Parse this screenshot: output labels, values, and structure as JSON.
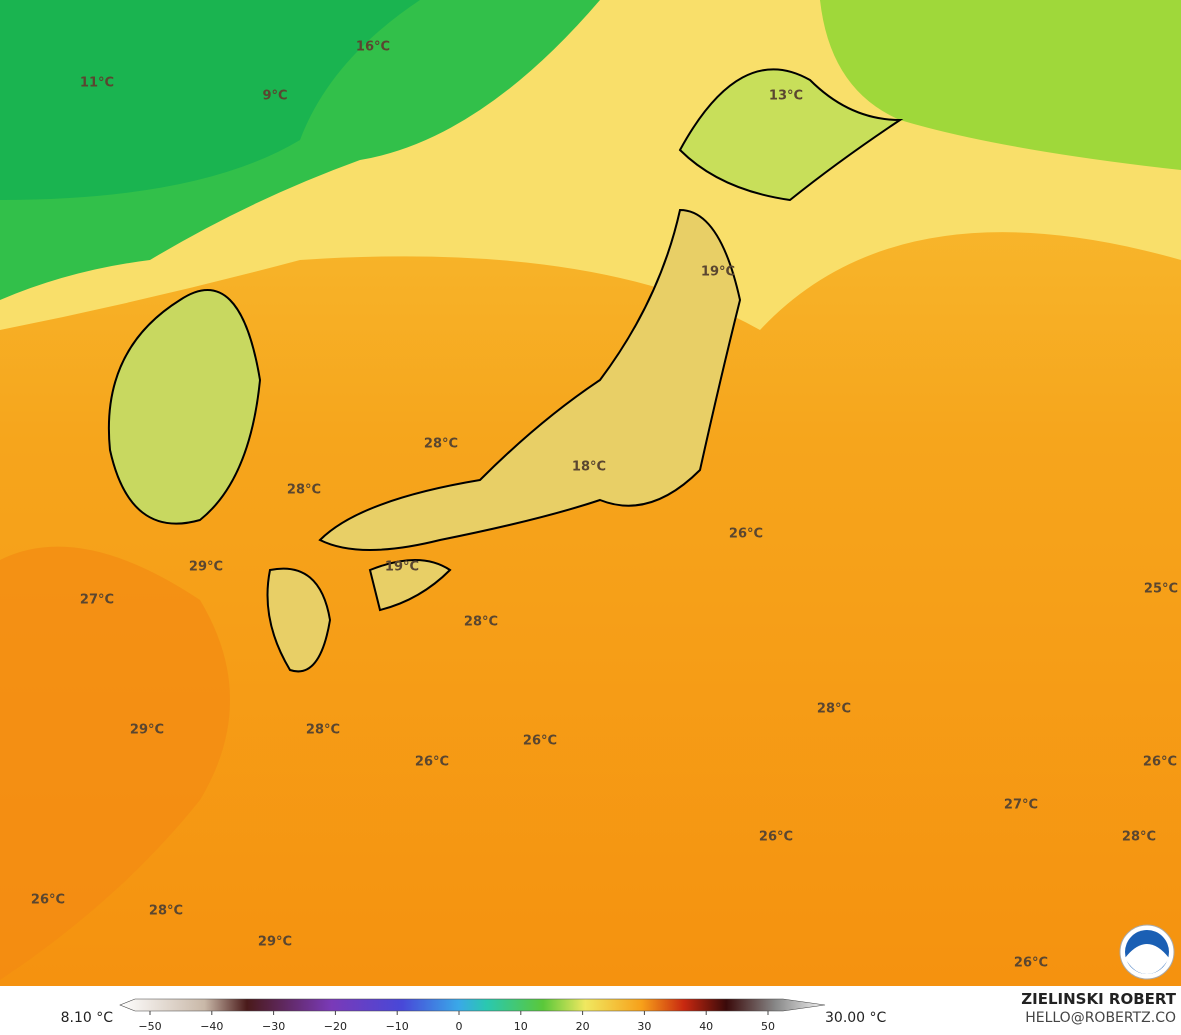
{
  "map": {
    "labels": [
      "16°C",
      "11°C",
      "9°C",
      "13°C",
      "19°C",
      "28°C",
      "18°C",
      "28°C",
      "26°C",
      "29°C",
      "19°C",
      "27°C",
      "25°C",
      "28°C",
      "28°C",
      "29°C",
      "28°C",
      "26°C",
      "26°C",
      "26°C",
      "27°C",
      "26°C",
      "28°C",
      "26°C",
      "28°C",
      "29°C",
      "26°C"
    ]
  },
  "colorbar": {
    "min_label": "8.10 °C",
    "max_label": "30.00 °C",
    "ticks": [
      {
        "value": -50,
        "label": "−50"
      },
      {
        "value": -40,
        "label": "−40"
      },
      {
        "value": -30,
        "label": "−30"
      },
      {
        "value": -20,
        "label": "−20"
      },
      {
        "value": -10,
        "label": "−10"
      },
      0,
      10,
      20,
      30,
      40,
      50
    ]
  },
  "credit": {
    "name": "ZIELINSKI ROBERT",
    "email": "HELLO@ROBERTZ.CO"
  }
}
